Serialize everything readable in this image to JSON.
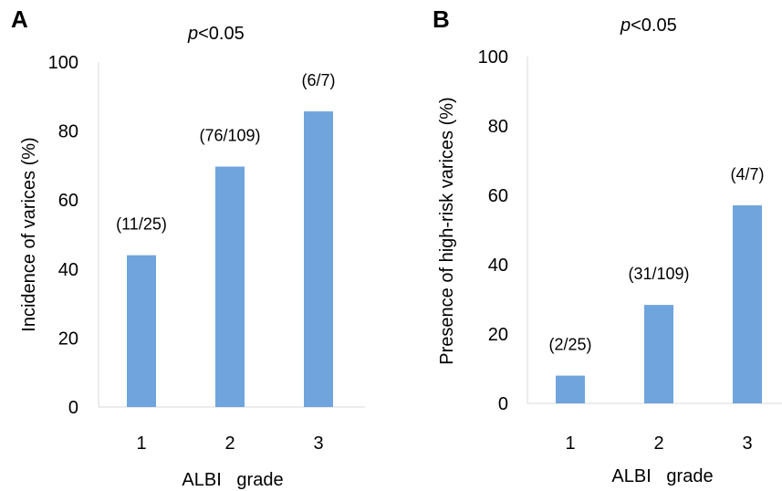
{
  "chart_data": [
    {
      "panel": "A",
      "type": "bar",
      "annotation": {
        "p_italic": "p",
        "rest": "<0.05"
      },
      "xlabel": "ALBI   grade",
      "ylabel": "Incidence of varices (%)",
      "ylim": [
        0,
        100
      ],
      "yticks": [
        0,
        20,
        40,
        60,
        80,
        100
      ],
      "categories": [
        "1",
        "2",
        "3"
      ],
      "values": [
        44,
        69.7,
        85.7
      ],
      "data_labels": [
        "(11/25)",
        "(76/109)",
        "(6/7)"
      ],
      "bar_color": "#6FA5DC",
      "grid": false
    },
    {
      "panel": "B",
      "type": "bar",
      "annotation": {
        "p_italic": "p",
        "rest": "<0.05"
      },
      "xlabel": "ALBI   grade",
      "ylabel": "Presence of high-risk varices (%)",
      "ylim": [
        0,
        100
      ],
      "yticks": [
        0,
        20,
        40,
        60,
        80,
        100
      ],
      "categories": [
        "1",
        "2",
        "3"
      ],
      "values": [
        8,
        28.4,
        57.1
      ],
      "data_labels": [
        "(2/25)",
        "(31/109)",
        "(4/7)"
      ],
      "bar_color": "#6FA5DC",
      "grid": false
    }
  ]
}
